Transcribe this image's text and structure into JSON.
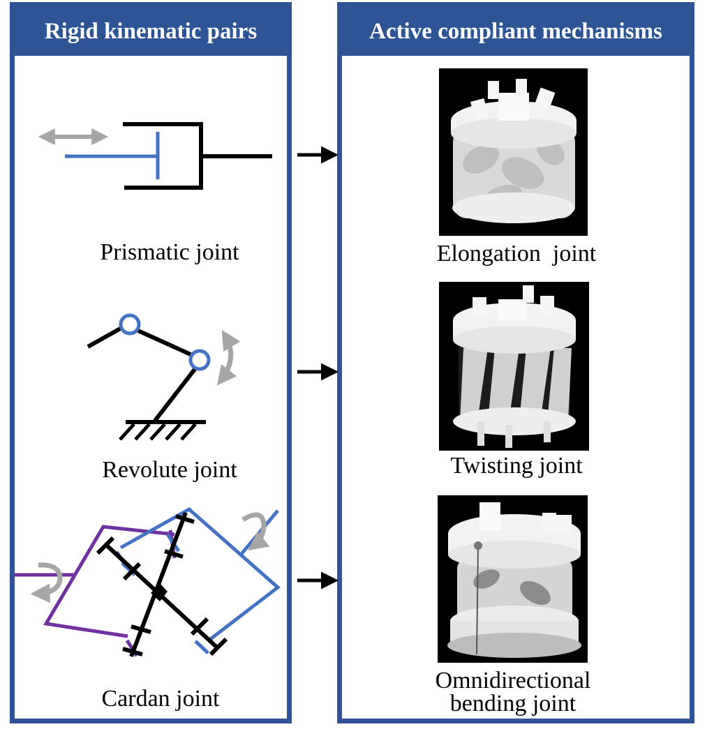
{
  "left_panel": {
    "title": "Rigid kinematic pairs",
    "items": [
      {
        "label": "Prismatic joint",
        "icon": "prismatic-joint-schematic"
      },
      {
        "label": "Revolute joint",
        "icon": "revolute-joint-schematic"
      },
      {
        "label": "Cardan joint",
        "icon": "cardan-joint-schematic"
      }
    ]
  },
  "right_panel": {
    "title": "Active compliant mechanisms",
    "items": [
      {
        "label": "Elongation  joint"
      },
      {
        "label": "Twisting joint"
      },
      {
        "label_line1": "Omnidirectional",
        "label_line2": "bending joint"
      }
    ]
  },
  "colors": {
    "frame": "#2e5496",
    "header_text": "#ffffff",
    "link_blue": "#4472c4",
    "link_purple": "#7030a0",
    "motion_arrow": "#a6a6a6",
    "structure": "#000000"
  }
}
